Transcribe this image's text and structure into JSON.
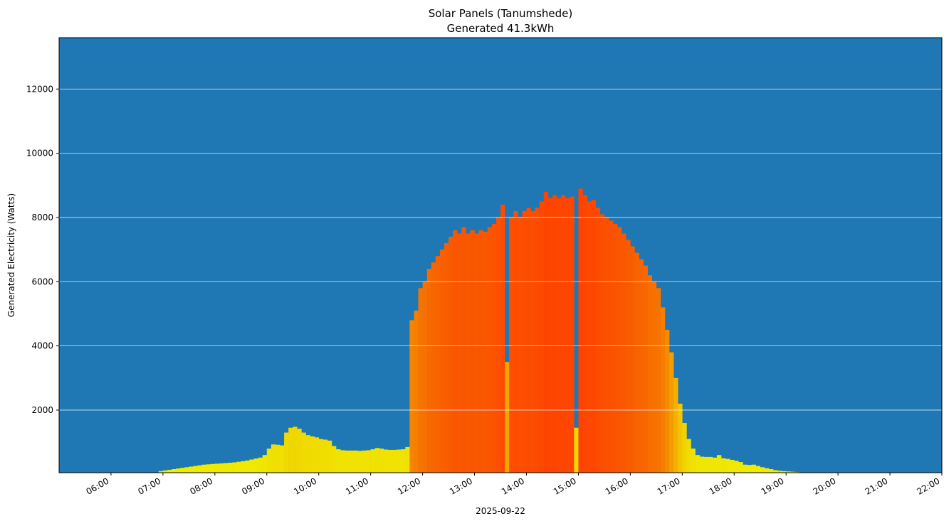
{
  "chart_data": {
    "type": "bar",
    "title": "Solar Panels (Tanumshede)",
    "subtitle": "Generated 41.3kWh",
    "xlabel": "2025-09-22",
    "ylabel": "Generated Electricity (Watts)",
    "xlim": [
      "05:00",
      "22:00"
    ],
    "ylim": [
      50,
      13600
    ],
    "grid": "horizontal",
    "background_color": "#1f77b4",
    "color_low": "#f0f000",
    "color_high": "#ff4000",
    "x_ticks": [
      "06:00",
      "07:00",
      "08:00",
      "09:00",
      "10:00",
      "11:00",
      "12:00",
      "13:00",
      "14:00",
      "15:00",
      "16:00",
      "17:00",
      "18:00",
      "19:00",
      "20:00",
      "21:00",
      "22:00"
    ],
    "y_ticks": [
      2000,
      4000,
      6000,
      8000,
      10000,
      12000
    ],
    "interval_minutes": 5,
    "start_time": "06:55",
    "values": [
      100,
      120,
      140,
      160,
      180,
      200,
      220,
      240,
      260,
      280,
      300,
      310,
      320,
      330,
      340,
      350,
      360,
      370,
      390,
      410,
      430,
      460,
      490,
      520,
      600,
      800,
      930,
      920,
      900,
      1300,
      1450,
      1480,
      1420,
      1300,
      1220,
      1180,
      1150,
      1100,
      1080,
      1050,
      880,
      780,
      750,
      740,
      740,
      740,
      730,
      740,
      750,
      780,
      820,
      800,
      770,
      760,
      760,
      770,
      780,
      850,
      4800,
      5100,
      5800,
      6000,
      6400,
      6600,
      6800,
      7000,
      7200,
      7400,
      7600,
      7500,
      7700,
      7500,
      7600,
      7500,
      7600,
      7550,
      7700,
      7800,
      8000,
      8400,
      3500,
      8000,
      8200,
      8000,
      8200,
      8300,
      8200,
      8300,
      8500,
      8800,
      8600,
      8700,
      8600,
      8700,
      8600,
      8650,
      1450,
      8900,
      8700,
      8500,
      8550,
      8300,
      8100,
      8000,
      7900,
      7800,
      7700,
      7500,
      7300,
      7100,
      6900,
      6700,
      6500,
      6200,
      6000,
      5800,
      5200,
      4500,
      3800,
      3000,
      2200,
      1600,
      1100,
      800,
      600,
      550,
      540,
      540,
      520,
      600,
      500,
      480,
      450,
      420,
      380,
      300,
      290,
      300,
      260,
      220,
      190,
      160,
      130,
      110,
      100,
      90,
      80,
      70,
      60,
      60,
      50,
      50,
      40,
      40,
      55,
      50
    ]
  }
}
